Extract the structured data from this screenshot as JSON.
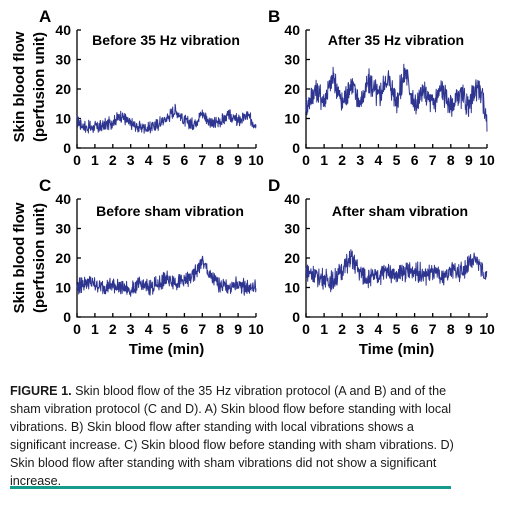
{
  "figure": {
    "shared_ylabel_line1": "Skin blood flow",
    "shared_ylabel_line2": "(perfusion unit)",
    "shared_xlabel": "Time (min)"
  },
  "chart_data": [
    {
      "type": "line",
      "panel": "A",
      "title": "Before 35 Hz vibration",
      "xlabel": "",
      "ylabel": "Skin blood flow (perfusion unit)",
      "xlim": [
        0,
        10
      ],
      "ylim": [
        0,
        40
      ],
      "x_ticks": [
        "0",
        "1",
        "2",
        "3",
        "4",
        "5",
        "6",
        "7",
        "8",
        "9",
        "10"
      ],
      "y_ticks": [
        "0",
        "10",
        "20",
        "30",
        "40"
      ],
      "color": "#2e3590",
      "series": [
        {
          "x": [
            0,
            0.5,
            1,
            1.5,
            2,
            2.5,
            3,
            3.5,
            4,
            4.5,
            5,
            5.5,
            6,
            6.5,
            7,
            7.5,
            8,
            8.5,
            9,
            9.5,
            10
          ],
          "values": [
            9,
            7,
            7,
            7.5,
            9,
            11,
            8,
            7,
            7,
            8,
            10,
            13,
            9,
            8,
            12,
            8,
            9,
            11,
            9,
            11,
            8
          ]
        }
      ]
    },
    {
      "type": "line",
      "panel": "B",
      "title": "After 35 Hz vibration",
      "xlabel": "",
      "ylabel": "",
      "xlim": [
        0,
        10
      ],
      "ylim": [
        0,
        40
      ],
      "x_ticks": [
        "0",
        "1",
        "2",
        "3",
        "4",
        "5",
        "6",
        "7",
        "8",
        "9",
        "10"
      ],
      "y_ticks": [
        "0",
        "10",
        "20",
        "30",
        "40"
      ],
      "color": "#2e3590",
      "series": [
        {
          "x": [
            0,
            0.5,
            1,
            1.5,
            2,
            2.5,
            3,
            3.5,
            4,
            4.5,
            5,
            5.5,
            6,
            6.5,
            7,
            7.5,
            8,
            8.5,
            9,
            9.5,
            10
          ],
          "values": [
            14,
            20,
            16,
            24,
            15,
            22,
            15,
            23,
            17,
            24,
            16,
            26,
            14,
            19,
            15,
            20,
            14,
            18,
            14,
            22,
            10
          ]
        }
      ]
    },
    {
      "type": "line",
      "panel": "C",
      "title": "Before sham vibration",
      "xlabel": "Time (min)",
      "ylabel": "Skin blood flow (perfusion unit)",
      "xlim": [
        0,
        10
      ],
      "ylim": [
        0,
        40
      ],
      "x_ticks": [
        "0",
        "1",
        "2",
        "3",
        "4",
        "5",
        "6",
        "7",
        "8",
        "9",
        "10"
      ],
      "y_ticks": [
        "0",
        "10",
        "20",
        "30",
        "40"
      ],
      "color": "#2e3590",
      "series": [
        {
          "x": [
            0,
            0.5,
            1,
            1.5,
            2,
            2.5,
            3,
            3.5,
            4,
            4.5,
            5,
            5.5,
            6,
            6.5,
            7,
            7.5,
            8,
            8.5,
            9,
            9.5,
            10
          ],
          "values": [
            10,
            12,
            11,
            10,
            11,
            10,
            9,
            11,
            10,
            11,
            13,
            12,
            12,
            14,
            19,
            13,
            11,
            10,
            11,
            10,
            10
          ]
        }
      ]
    },
    {
      "type": "line",
      "panel": "D",
      "title": "After sham vibration",
      "xlabel": "Time (min)",
      "ylabel": "",
      "xlim": [
        0,
        10
      ],
      "ylim": [
        0,
        40
      ],
      "x_ticks": [
        "0",
        "1",
        "2",
        "3",
        "4",
        "5",
        "6",
        "7",
        "8",
        "9",
        "10"
      ],
      "y_ticks": [
        "0",
        "10",
        "20",
        "30",
        "40"
      ],
      "color": "#2e3590",
      "series": [
        {
          "x": [
            0,
            0.5,
            1,
            1.5,
            2,
            2.5,
            3,
            3.5,
            4,
            4.5,
            5,
            5.5,
            6,
            6.5,
            7,
            7.5,
            8,
            8.5,
            9,
            9.5,
            10
          ],
          "values": [
            16,
            14,
            13,
            12,
            16,
            20,
            15,
            13,
            14,
            16,
            14,
            15,
            16,
            14,
            15,
            13,
            16,
            15,
            18,
            19,
            13
          ]
        }
      ]
    }
  ],
  "caption": {
    "label": "FIGURE 1.",
    "text": " Skin blood flow of the 35 Hz vibration protocol (A and B) and of the sham vibration protocol (C and D). A) Skin blood flow before standing with local vibrations. B) Skin blood flow after standing with local vibrations shows a significant increase. C) Skin blood flow before standing with sham vibrations. D) Skin blood flow after standing with sham vibrations did not show a significant increase."
  }
}
